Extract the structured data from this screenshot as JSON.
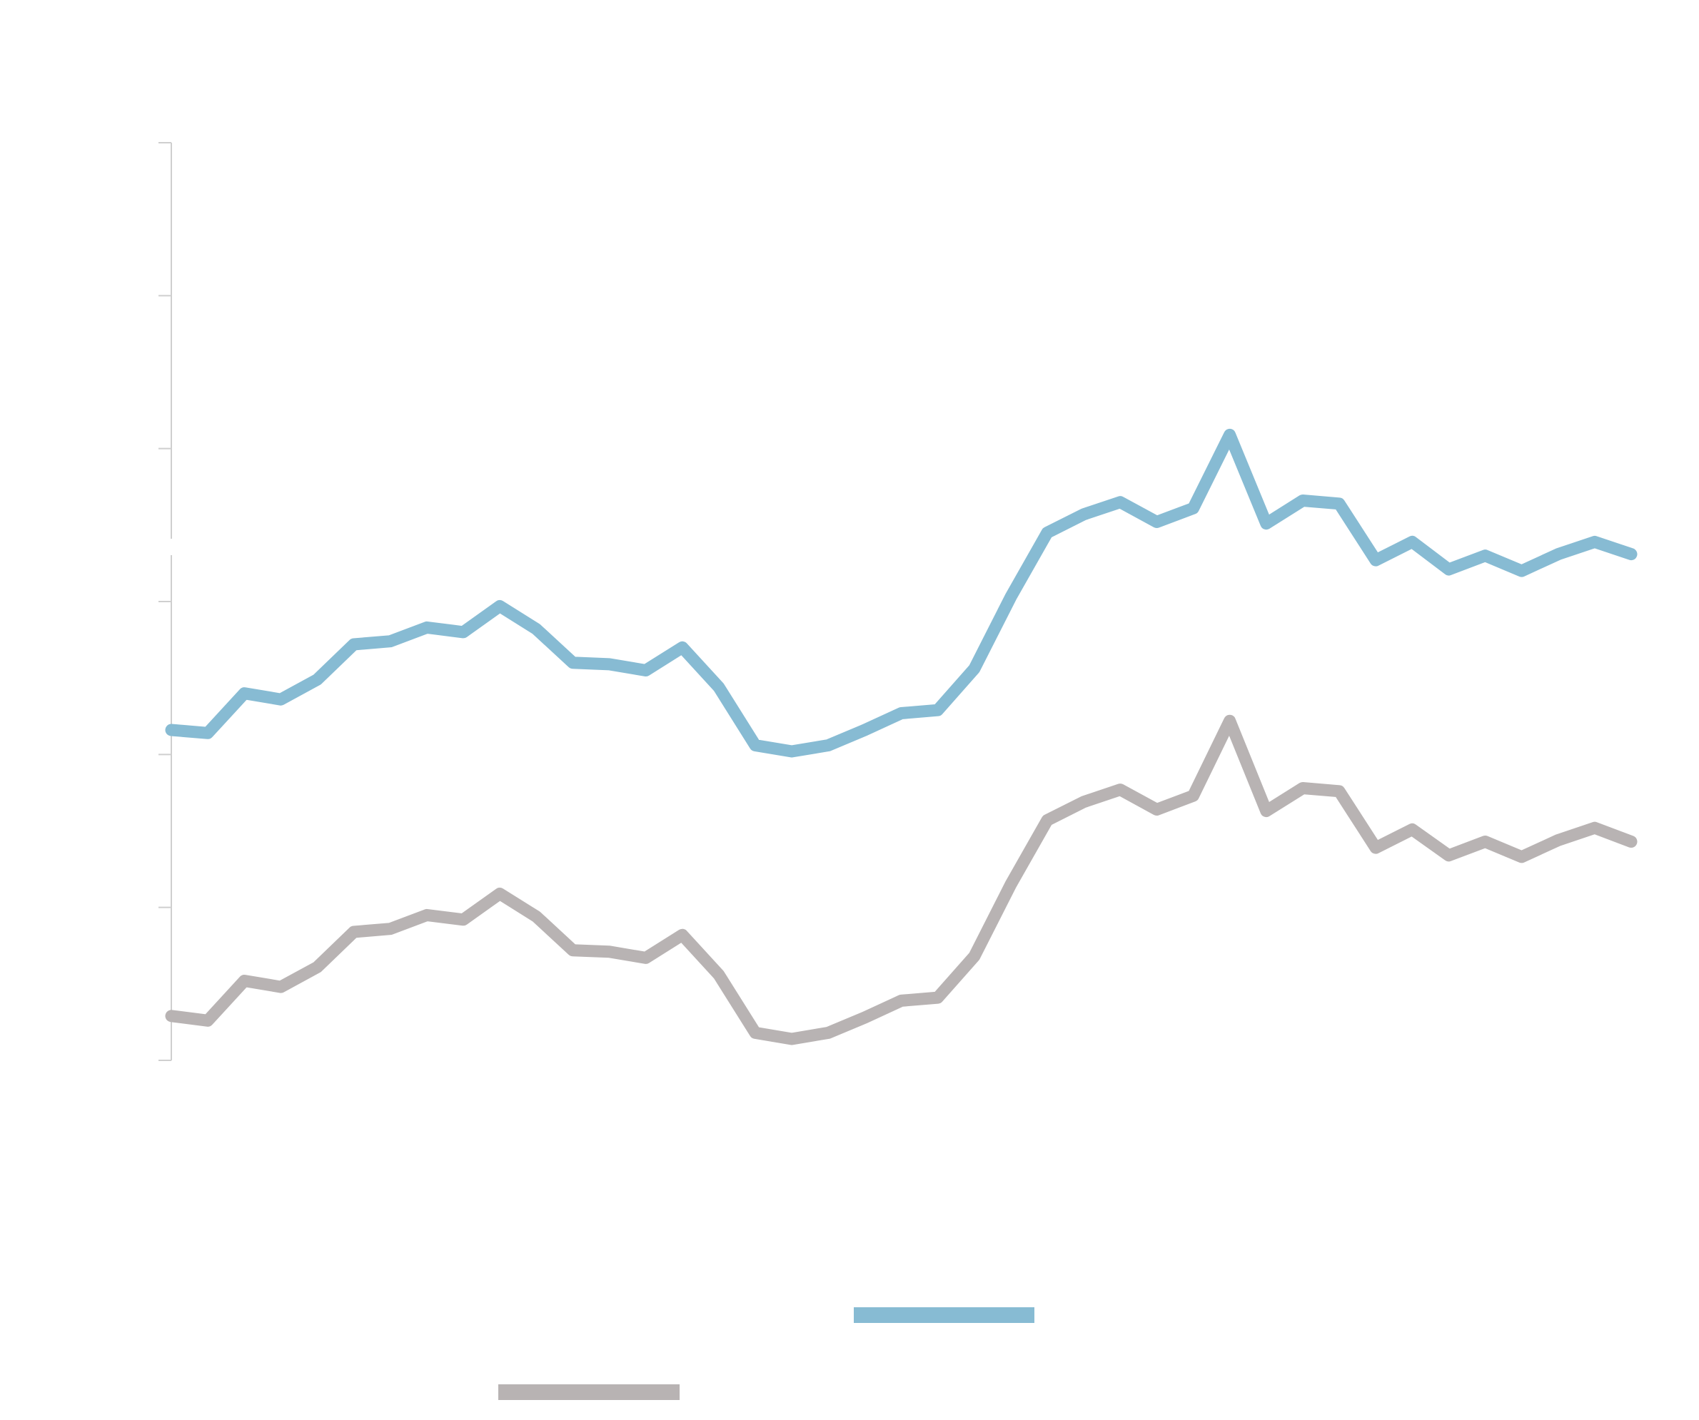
{
  "chart_data": {
    "type": "line",
    "title": "",
    "xlabel": "",
    "ylabel": "",
    "grid": false,
    "legend_placement": "bottom",
    "ylim": [
      0,
      6
    ],
    "x": [
      0,
      1,
      2,
      3,
      4,
      5,
      6,
      7,
      8,
      9,
      10,
      11,
      12,
      13,
      14,
      15,
      16,
      17,
      18,
      19,
      20,
      21,
      22,
      23,
      24,
      25,
      26,
      27,
      28,
      29,
      30,
      31,
      32,
      33,
      34,
      35,
      36,
      37,
      38,
      39,
      40
    ],
    "series": [
      {
        "color": "#87bbd3",
        "values": [
          2.16,
          2.14,
          2.4,
          2.36,
          2.49,
          2.72,
          2.74,
          2.83,
          2.8,
          2.97,
          2.82,
          2.6,
          2.59,
          2.55,
          2.7,
          2.44,
          2.06,
          2.02,
          2.06,
          2.16,
          2.27,
          2.29,
          2.56,
          3.03,
          3.45,
          3.57,
          3.65,
          3.52,
          3.61,
          4.09,
          3.51,
          3.66,
          3.64,
          3.27,
          3.39,
          3.21,
          3.3,
          3.2,
          3.31,
          3.39,
          3.31
        ]
      },
      {
        "color": "#b8b3b3",
        "values": [
          0.29,
          0.26,
          0.52,
          0.48,
          0.61,
          0.84,
          0.86,
          0.95,
          0.92,
          1.09,
          0.94,
          0.72,
          0.71,
          0.67,
          0.82,
          0.56,
          0.18,
          0.14,
          0.18,
          0.28,
          0.39,
          0.41,
          0.68,
          1.15,
          1.57,
          1.69,
          1.77,
          1.64,
          1.73,
          2.22,
          1.63,
          1.78,
          1.76,
          1.39,
          1.51,
          1.34,
          1.43,
          1.33,
          1.44,
          1.52,
          1.43
        ]
      }
    ]
  }
}
